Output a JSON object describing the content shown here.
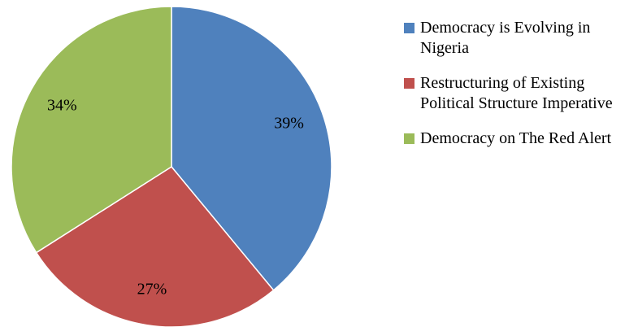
{
  "chart_data": {
    "type": "pie",
    "categories": [
      "Democracy is Evolving in Nigeria",
      "Restructuring of Existing Political Structure Imperative",
      "Democracy on The Red Alert"
    ],
    "values": [
      39,
      27,
      34
    ],
    "value_labels": [
      "39%",
      "27%",
      "34%"
    ],
    "colors": [
      "#4f81bd",
      "#c0504d",
      "#9bbb59"
    ]
  }
}
